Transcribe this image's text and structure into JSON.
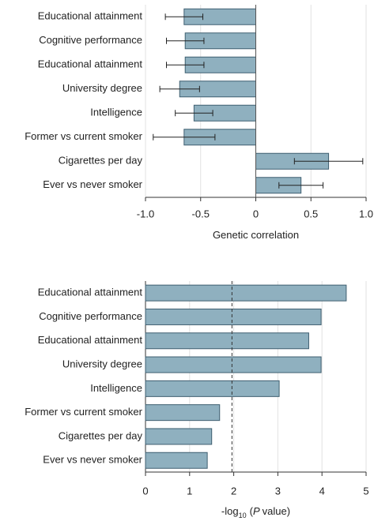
{
  "chart_data": [
    {
      "type": "bar",
      "orientation": "horizontal",
      "categories": [
        "Educational attainment",
        "Cognitive performance",
        "Educational attainment",
        "University degree",
        "Intelligence",
        "Former vs current smoker",
        "Cigarettes per day",
        "Ever vs never smoker"
      ],
      "values": [
        -0.65,
        -0.64,
        -0.64,
        -0.69,
        -0.56,
        -0.65,
        0.66,
        0.41
      ],
      "errors": [
        0.17,
        0.17,
        0.17,
        0.18,
        0.17,
        0.28,
        0.31,
        0.2
      ],
      "color": "#8fb0bf",
      "xlim": [
        -1,
        1
      ],
      "xticks": [
        {
          "value": -1,
          "label": "-1.0"
        },
        -0.5,
        0,
        0.5,
        {
          "value": 1,
          "label": "1.0"
        }
      ],
      "xlabel": [
        "Genetic correlation"
      ],
      "grid": true
    },
    {
      "type": "bar",
      "orientation": "horizontal",
      "categories": [
        "Educational attainment",
        "Cognitive performance",
        "Educational attainment",
        "University degree",
        "Intelligence",
        "Former vs current smoker",
        "Cigarettes per day",
        "Ever vs never smoker"
      ],
      "values": [
        4.55,
        3.98,
        3.7,
        3.98,
        3.03,
        1.68,
        1.5,
        1.4
      ],
      "color": "#8fb0bf",
      "xlim": [
        0,
        5
      ],
      "xticks": [
        0,
        1,
        2,
        3,
        4,
        5
      ],
      "threshold": 1.96,
      "xlabel": [
        "-log",
        "10",
        "(",
        "P",
        "value)"
      ],
      "grid": true
    }
  ]
}
